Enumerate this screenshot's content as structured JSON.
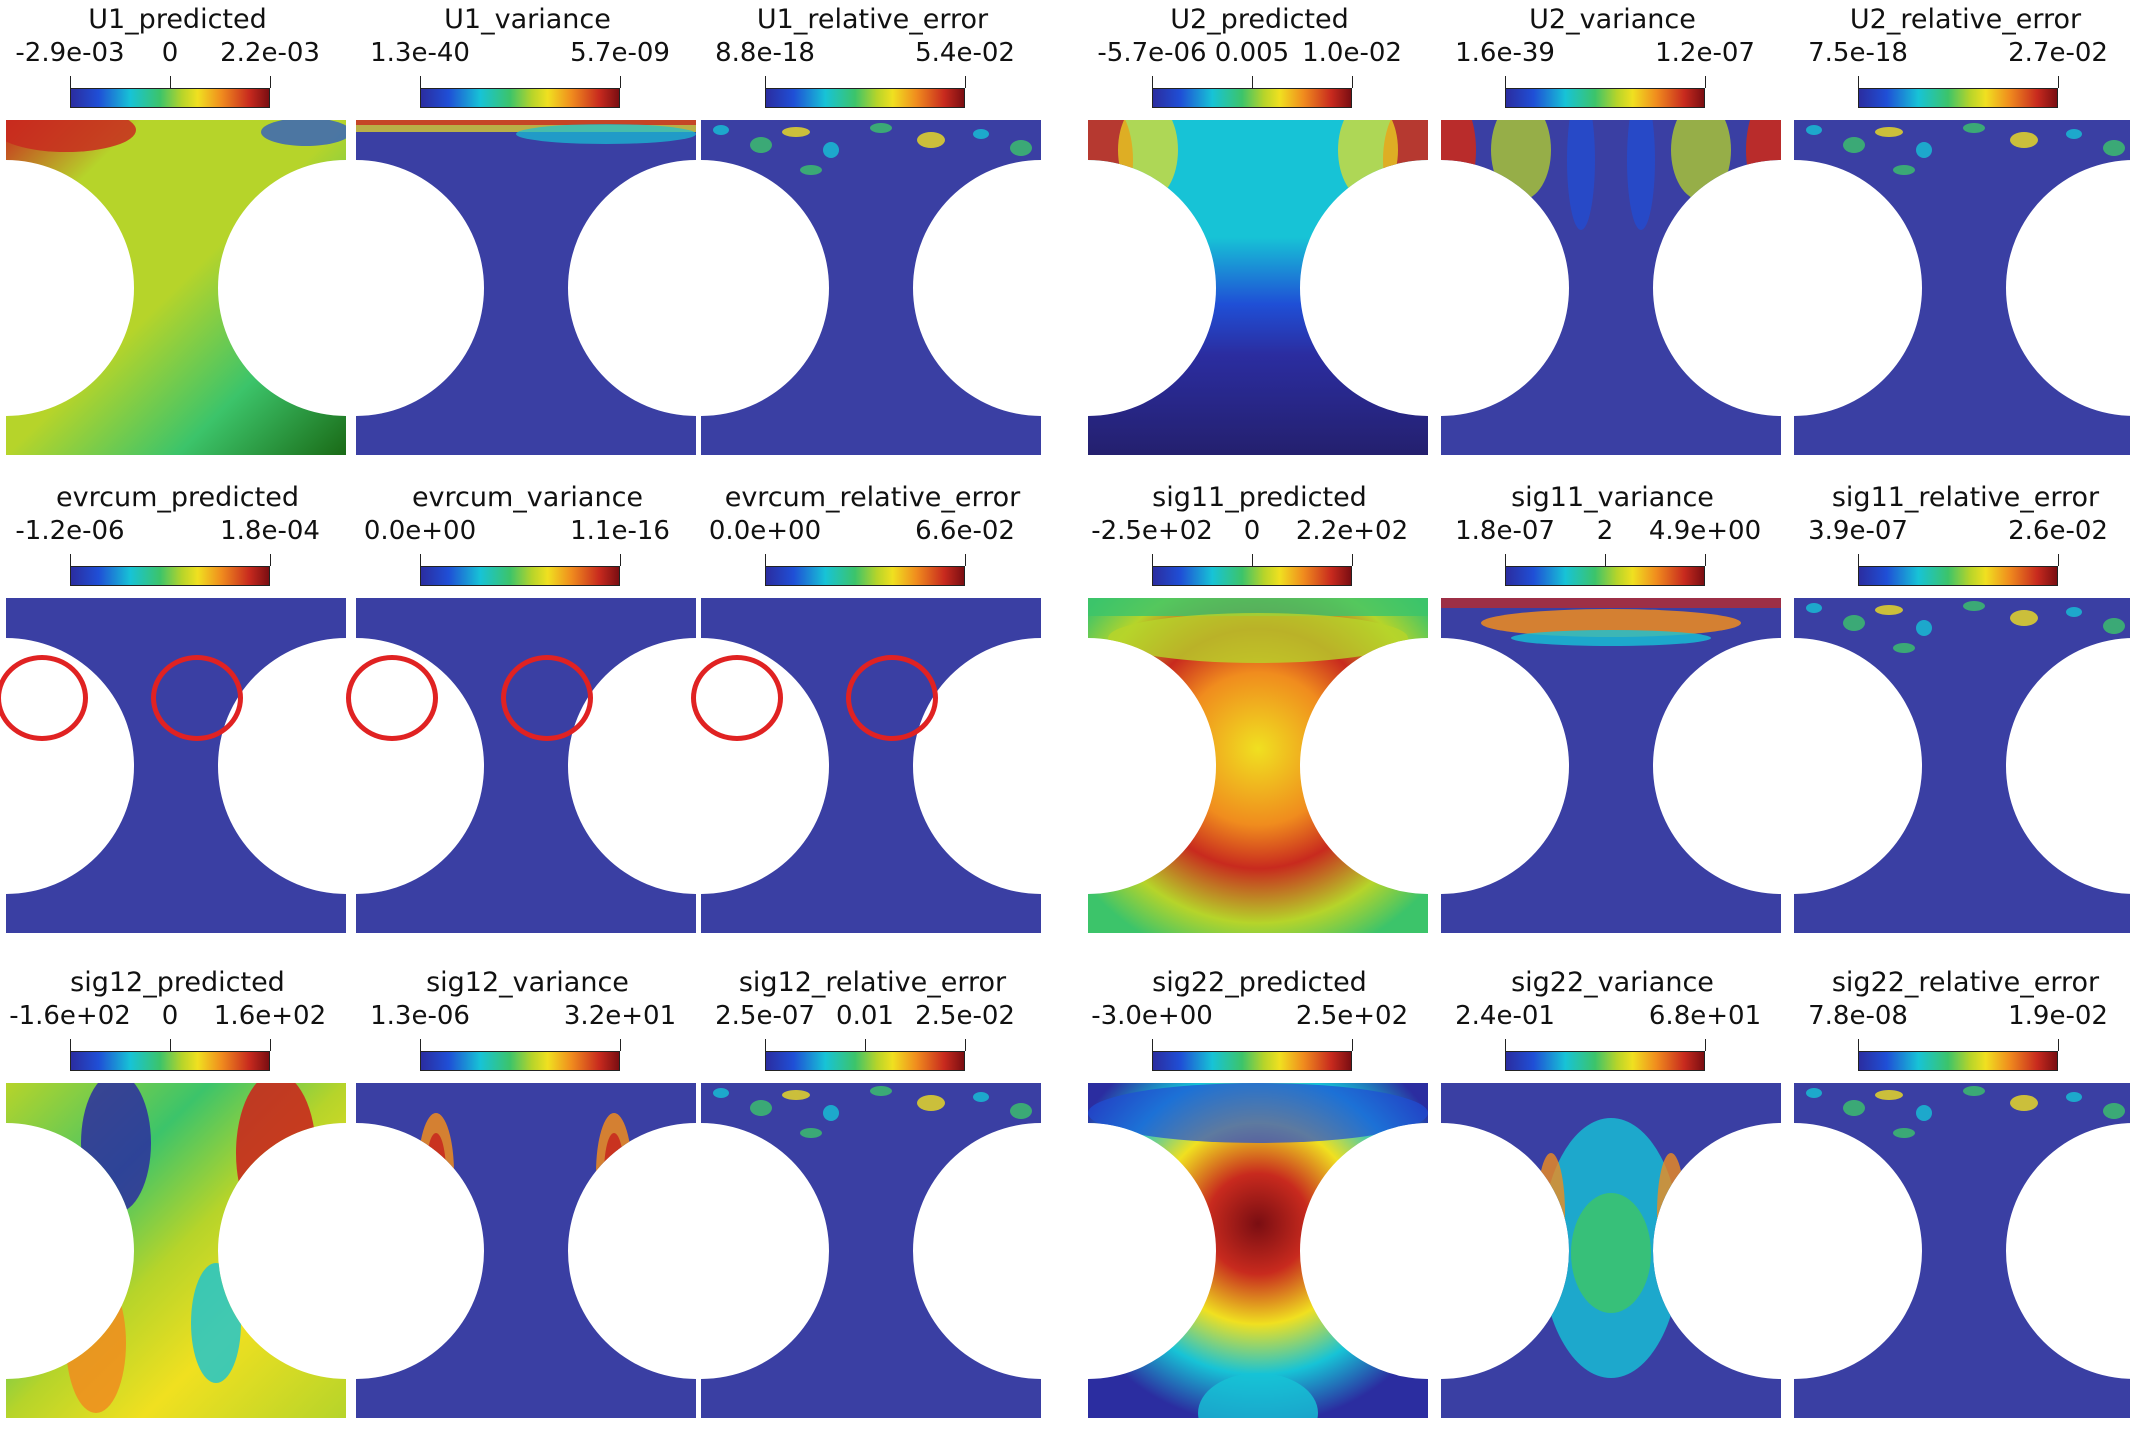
{
  "colormap": [
    "#2b2da0",
    "#1f4fd6",
    "#17c3d6",
    "#3cc46a",
    "#b6d42a",
    "#f0e020",
    "#f08c1e",
    "#c82a1e",
    "#7a0e12"
  ],
  "highlight_color": "#e02222",
  "background_color": "#3a3fa3",
  "panels": [
    {
      "title": "U1_predicted",
      "labels": [
        "-2.9e-03",
        "0",
        "2.2e-03"
      ],
      "style": "u1pred"
    },
    {
      "title": "U1_variance",
      "labels": [
        "1.3e-40",
        "",
        "5.7e-09"
      ],
      "style": "u1var"
    },
    {
      "title": "U1_relative_error",
      "labels": [
        "8.8e-18",
        "",
        "5.4e-02"
      ],
      "style": "err"
    },
    {
      "title": "U2_predicted",
      "labels": [
        "-5.7e-06",
        "0.005",
        "1.0e-02"
      ],
      "style": "u2pred"
    },
    {
      "title": "U2_variance",
      "labels": [
        "1.6e-39",
        "",
        "1.2e-07"
      ],
      "style": "u2var"
    },
    {
      "title": "U2_relative_error",
      "labels": [
        "7.5e-18",
        "",
        "2.7e-02"
      ],
      "style": "err"
    },
    {
      "title": "evrcum_predicted",
      "labels": [
        "-1.2e-06",
        "",
        "1.8e-04"
      ],
      "style": "evr",
      "circled": true
    },
    {
      "title": "evrcum_variance",
      "labels": [
        "0.0e+00",
        "",
        "1.1e-16"
      ],
      "style": "evr",
      "circled": true
    },
    {
      "title": "evrcum_relative_error",
      "labels": [
        "0.0e+00",
        "",
        "6.6e-02"
      ],
      "style": "evr",
      "circled": true
    },
    {
      "title": "sig11_predicted",
      "labels": [
        "-2.5e+02",
        "0",
        "2.2e+02"
      ],
      "style": "s11pred"
    },
    {
      "title": "sig11_variance",
      "labels": [
        "1.8e-07",
        "2",
        "4.9e+00"
      ],
      "style": "s11var"
    },
    {
      "title": "sig11_relative_error",
      "labels": [
        "3.9e-07",
        "",
        "2.6e-02"
      ],
      "style": "err"
    },
    {
      "title": "sig12_predicted",
      "labels": [
        "-1.6e+02",
        "0",
        "1.6e+02"
      ],
      "style": "s12pred"
    },
    {
      "title": "sig12_variance",
      "labels": [
        "1.3e-06",
        "",
        "3.2e+01"
      ],
      "style": "s12var"
    },
    {
      "title": "sig12_relative_error",
      "labels": [
        "2.5e-07",
        "0.01",
        "2.5e-02"
      ],
      "style": "err"
    },
    {
      "title": "sig22_predicted",
      "labels": [
        "-3.0e+00",
        "",
        "2.5e+02"
      ],
      "style": "s22pred"
    },
    {
      "title": "sig22_variance",
      "labels": [
        "2.4e-01",
        "",
        "6.8e+01"
      ],
      "style": "s22var"
    },
    {
      "title": "sig22_relative_error",
      "labels": [
        "7.8e-08",
        "",
        "1.9e-02"
      ],
      "style": "err"
    }
  ]
}
